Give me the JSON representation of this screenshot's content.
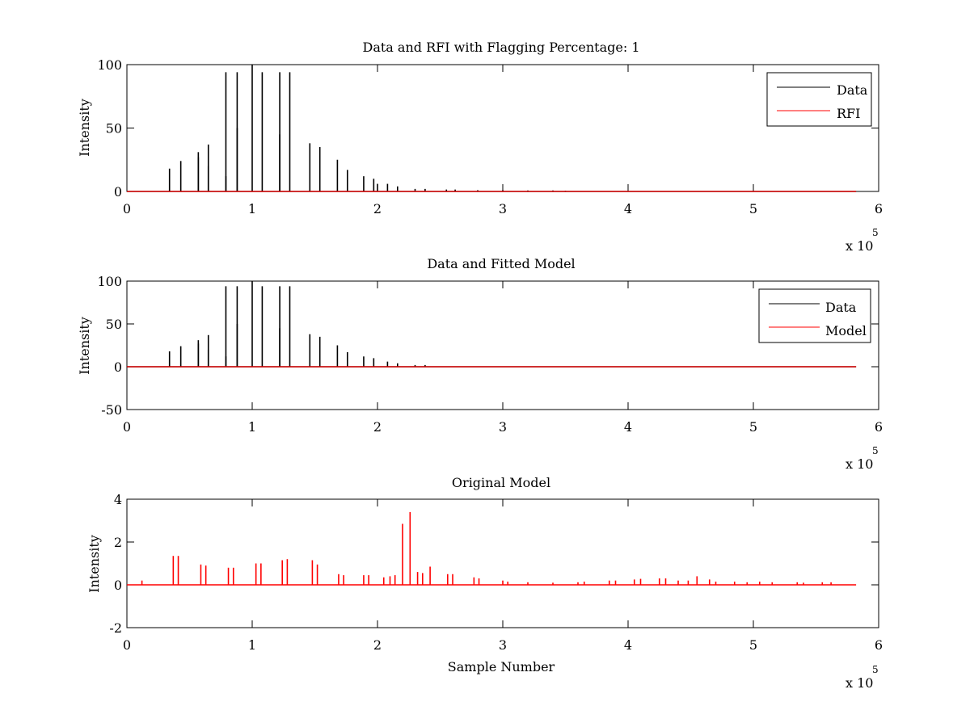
{
  "figure": {
    "background": "#ffffff"
  },
  "chart_data": [
    {
      "type": "line",
      "title": "Data and RFI with Flagging Percentage: 1",
      "xlabel": "",
      "ylabel": "Intensity",
      "xlim": [
        0,
        6
      ],
      "ylim": [
        0,
        100
      ],
      "x_ticks": [
        "0",
        "1",
        "2",
        "3",
        "4",
        "5",
        "6"
      ],
      "y_ticks": [
        "0",
        "50",
        "100"
      ],
      "x_multiplier": {
        "base": "x 10",
        "exponent": "5"
      },
      "legend": {
        "position": "top-right",
        "entries": [
          {
            "name": "Data",
            "color": "#000000"
          },
          {
            "name": "RFI",
            "color": "#ff0000"
          }
        ]
      },
      "series": [
        {
          "name": "Data",
          "color": "#000000",
          "baseline": 0,
          "x_end": 5.82,
          "peaks": [
            [
              0.34,
              18
            ],
            [
              0.43,
              24
            ],
            [
              0.57,
              31
            ],
            [
              0.57,
              27
            ],
            [
              0.65,
              37
            ],
            [
              0.65,
              20
            ],
            [
              0.79,
              94
            ],
            [
              0.79,
              12
            ],
            [
              0.88,
              94
            ],
            [
              0.88,
              50
            ],
            [
              1.0,
              100
            ],
            [
              1.08,
              94
            ],
            [
              1.22,
              94
            ],
            [
              1.22,
              45
            ],
            [
              1.3,
              94
            ],
            [
              1.46,
              38
            ],
            [
              1.54,
              35
            ],
            [
              1.68,
              25
            ],
            [
              1.76,
              17
            ],
            [
              1.89,
              12
            ],
            [
              1.97,
              10
            ],
            [
              2.0,
              6
            ],
            [
              2.08,
              6
            ],
            [
              2.16,
              4
            ],
            [
              2.3,
              2
            ],
            [
              2.38,
              2
            ],
            [
              2.55,
              1.5
            ],
            [
              2.62,
              1.5
            ],
            [
              2.8,
              1
            ],
            [
              3.0,
              1
            ],
            [
              3.2,
              0.8
            ],
            [
              3.4,
              0.8
            ],
            [
              3.5,
              0.6
            ]
          ]
        },
        {
          "name": "RFI",
          "color": "#ff0000",
          "baseline": 0,
          "x_end": 5.82,
          "peaks": []
        }
      ]
    },
    {
      "type": "line",
      "title": "Data and Fitted Model",
      "xlabel": "",
      "ylabel": "Intensity",
      "xlim": [
        0,
        6
      ],
      "ylim": [
        -50,
        100
      ],
      "x_ticks": [
        "0",
        "1",
        "2",
        "3",
        "4",
        "5",
        "6"
      ],
      "y_ticks": [
        "-50",
        "0",
        "50",
        "100"
      ],
      "x_multiplier": {
        "base": "x 10",
        "exponent": "5"
      },
      "legend": {
        "position": "top-right",
        "entries": [
          {
            "name": "Data",
            "color": "#000000"
          },
          {
            "name": "Model",
            "color": "#ff0000"
          }
        ]
      },
      "series": [
        {
          "name": "Data",
          "color": "#000000",
          "baseline": 0,
          "x_end": 5.82,
          "peaks": [
            [
              0.34,
              18
            ],
            [
              0.43,
              24
            ],
            [
              0.57,
              31
            ],
            [
              0.57,
              27
            ],
            [
              0.65,
              37
            ],
            [
              0.65,
              20
            ],
            [
              0.79,
              94
            ],
            [
              0.79,
              12
            ],
            [
              0.88,
              94
            ],
            [
              0.88,
              50
            ],
            [
              1.0,
              100
            ],
            [
              1.08,
              94
            ],
            [
              1.22,
              94
            ],
            [
              1.22,
              45
            ],
            [
              1.3,
              94
            ],
            [
              1.46,
              38
            ],
            [
              1.54,
              35
            ],
            [
              1.68,
              25
            ],
            [
              1.76,
              17
            ],
            [
              1.89,
              12
            ],
            [
              1.97,
              10
            ],
            [
              2.08,
              6
            ],
            [
              2.16,
              4
            ],
            [
              2.3,
              2
            ],
            [
              2.38,
              2
            ]
          ]
        },
        {
          "name": "Model",
          "color": "#ff0000",
          "baseline": 0,
          "x_end": 5.82,
          "peaks": []
        }
      ]
    },
    {
      "type": "line",
      "title": "Original Model",
      "xlabel": "Sample Number",
      "ylabel": "Intensity",
      "xlim": [
        0,
        6
      ],
      "ylim": [
        -2,
        4
      ],
      "x_ticks": [
        "0",
        "1",
        "2",
        "3",
        "4",
        "5",
        "6"
      ],
      "y_ticks": [
        "-2",
        "0",
        "2",
        "4"
      ],
      "x_multiplier": {
        "base": "x 10",
        "exponent": "5"
      },
      "legend": null,
      "series": [
        {
          "name": "",
          "color": "#ff0000",
          "baseline": 0,
          "x_end": 5.82,
          "peaks": [
            [
              0.12,
              0.2
            ],
            [
              0.37,
              1.35
            ],
            [
              0.41,
              1.35
            ],
            [
              0.59,
              0.95
            ],
            [
              0.63,
              0.9
            ],
            [
              0.81,
              0.8
            ],
            [
              0.85,
              0.8
            ],
            [
              1.03,
              1.0
            ],
            [
              1.07,
              1.0
            ],
            [
              1.24,
              1.15
            ],
            [
              1.28,
              1.2
            ],
            [
              1.48,
              1.15
            ],
            [
              1.52,
              0.95
            ],
            [
              1.69,
              0.5
            ],
            [
              1.73,
              0.45
            ],
            [
              1.89,
              0.45
            ],
            [
              1.93,
              0.45
            ],
            [
              2.05,
              0.35
            ],
            [
              2.1,
              0.4
            ],
            [
              2.14,
              0.45
            ],
            [
              2.2,
              2.85
            ],
            [
              2.26,
              3.4
            ],
            [
              2.32,
              0.6
            ],
            [
              2.36,
              0.55
            ],
            [
              2.42,
              0.85
            ],
            [
              2.56,
              0.5
            ],
            [
              2.6,
              0.5
            ],
            [
              2.77,
              0.35
            ],
            [
              2.81,
              0.3
            ],
            [
              3.0,
              0.2
            ],
            [
              3.04,
              0.15
            ],
            [
              3.2,
              0.12
            ],
            [
              3.4,
              0.1
            ],
            [
              3.6,
              0.12
            ],
            [
              3.65,
              0.15
            ],
            [
              3.85,
              0.2
            ],
            [
              3.9,
              0.2
            ],
            [
              4.05,
              0.25
            ],
            [
              4.1,
              0.28
            ],
            [
              4.25,
              0.3
            ],
            [
              4.3,
              0.3
            ],
            [
              4.4,
              0.2
            ],
            [
              4.48,
              0.2
            ],
            [
              4.55,
              0.4
            ],
            [
              4.65,
              0.25
            ],
            [
              4.7,
              0.15
            ],
            [
              4.85,
              0.15
            ],
            [
              4.95,
              0.12
            ],
            [
              5.05,
              0.15
            ],
            [
              5.15,
              0.12
            ],
            [
              5.35,
              0.12
            ],
            [
              5.4,
              0.1
            ],
            [
              5.55,
              0.12
            ],
            [
              5.62,
              0.12
            ]
          ]
        }
      ]
    }
  ]
}
